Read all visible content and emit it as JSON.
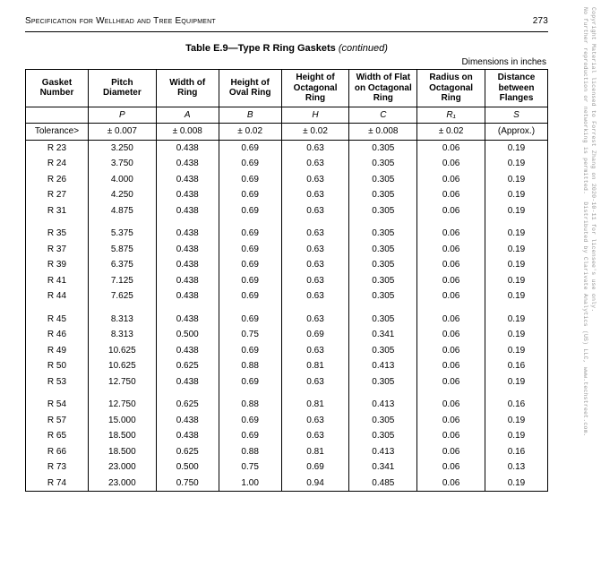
{
  "header": {
    "title": "Specification for Wellhead and Tree Equipment",
    "page_number": "273"
  },
  "table": {
    "title_main": "Table E.9—Type R Ring Gaskets",
    "title_cont": " (continued)",
    "dimensions_note": "Dimensions in inches",
    "columns": [
      {
        "label": "Gasket Number",
        "symbol": "",
        "tolerance": "Tolerance>"
      },
      {
        "label": "Pitch Diameter",
        "symbol": "P",
        "tolerance": "± 0.007"
      },
      {
        "label": "Width of Ring",
        "symbol": "A",
        "tolerance": "± 0.008"
      },
      {
        "label": "Height of Oval Ring",
        "symbol": "B",
        "tolerance": "± 0.02"
      },
      {
        "label": "Height of Octagonal Ring",
        "symbol": "H",
        "tolerance": "± 0.02"
      },
      {
        "label": "Width of Flat on Octagonal Ring",
        "symbol": "C",
        "tolerance": "± 0.008"
      },
      {
        "label": "Radius on Octagonal Ring",
        "symbol": "R₁",
        "tolerance": "± 0.02"
      },
      {
        "label": "Distance between Flanges",
        "symbol": "S",
        "tolerance": "(Approx.)"
      }
    ],
    "groups": [
      [
        [
          "R 23",
          "3.250",
          "0.438",
          "0.69",
          "0.63",
          "0.305",
          "0.06",
          "0.19"
        ],
        [
          "R 24",
          "3.750",
          "0.438",
          "0.69",
          "0.63",
          "0.305",
          "0.06",
          "0.19"
        ],
        [
          "R 26",
          "4.000",
          "0.438",
          "0.69",
          "0.63",
          "0.305",
          "0.06",
          "0.19"
        ],
        [
          "R 27",
          "4.250",
          "0.438",
          "0.69",
          "0.63",
          "0.305",
          "0.06",
          "0.19"
        ],
        [
          "R 31",
          "4.875",
          "0.438",
          "0.69",
          "0.63",
          "0.305",
          "0.06",
          "0.19"
        ]
      ],
      [
        [
          "R 35",
          "5.375",
          "0.438",
          "0.69",
          "0.63",
          "0.305",
          "0.06",
          "0.19"
        ],
        [
          "R 37",
          "5.875",
          "0.438",
          "0.69",
          "0.63",
          "0.305",
          "0.06",
          "0.19"
        ],
        [
          "R 39",
          "6.375",
          "0.438",
          "0.69",
          "0.63",
          "0.305",
          "0.06",
          "0.19"
        ],
        [
          "R 41",
          "7.125",
          "0.438",
          "0.69",
          "0.63",
          "0.305",
          "0.06",
          "0.19"
        ],
        [
          "R 44",
          "7.625",
          "0.438",
          "0.69",
          "0.63",
          "0.305",
          "0.06",
          "0.19"
        ]
      ],
      [
        [
          "R 45",
          "8.313",
          "0.438",
          "0.69",
          "0.63",
          "0.305",
          "0.06",
          "0.19"
        ],
        [
          "R 46",
          "8.313",
          "0.500",
          "0.75",
          "0.69",
          "0.341",
          "0.06",
          "0.19"
        ],
        [
          "R 49",
          "10.625",
          "0.438",
          "0.69",
          "0.63",
          "0.305",
          "0.06",
          "0.19"
        ],
        [
          "R 50",
          "10.625",
          "0.625",
          "0.88",
          "0.81",
          "0.413",
          "0.06",
          "0.16"
        ],
        [
          "R 53",
          "12.750",
          "0.438",
          "0.69",
          "0.63",
          "0.305",
          "0.06",
          "0.19"
        ]
      ],
      [
        [
          "R 54",
          "12.750",
          "0.625",
          "0.88",
          "0.81",
          "0.413",
          "0.06",
          "0.16"
        ],
        [
          "R 57",
          "15.000",
          "0.438",
          "0.69",
          "0.63",
          "0.305",
          "0.06",
          "0.19"
        ],
        [
          "R 65",
          "18.500",
          "0.438",
          "0.69",
          "0.63",
          "0.305",
          "0.06",
          "0.19"
        ],
        [
          "R 66",
          "18.500",
          "0.625",
          "0.88",
          "0.81",
          "0.413",
          "0.06",
          "0.16"
        ],
        [
          "R 73",
          "23.000",
          "0.500",
          "0.75",
          "0.69",
          "0.341",
          "0.06",
          "0.13"
        ],
        [
          "R 74",
          "23.000",
          "0.750",
          "1.00",
          "0.94",
          "0.485",
          "0.06",
          "0.19"
        ]
      ]
    ]
  },
  "watermark": {
    "line1": "Copyright Material licensed to Forrest Zhang on 2020-10-11 for licensee's use only.",
    "line2": "No further reproduction or networking is permitted.  Distributed by Clarivate Analytics (US) LLC, www.techstreet.com."
  }
}
